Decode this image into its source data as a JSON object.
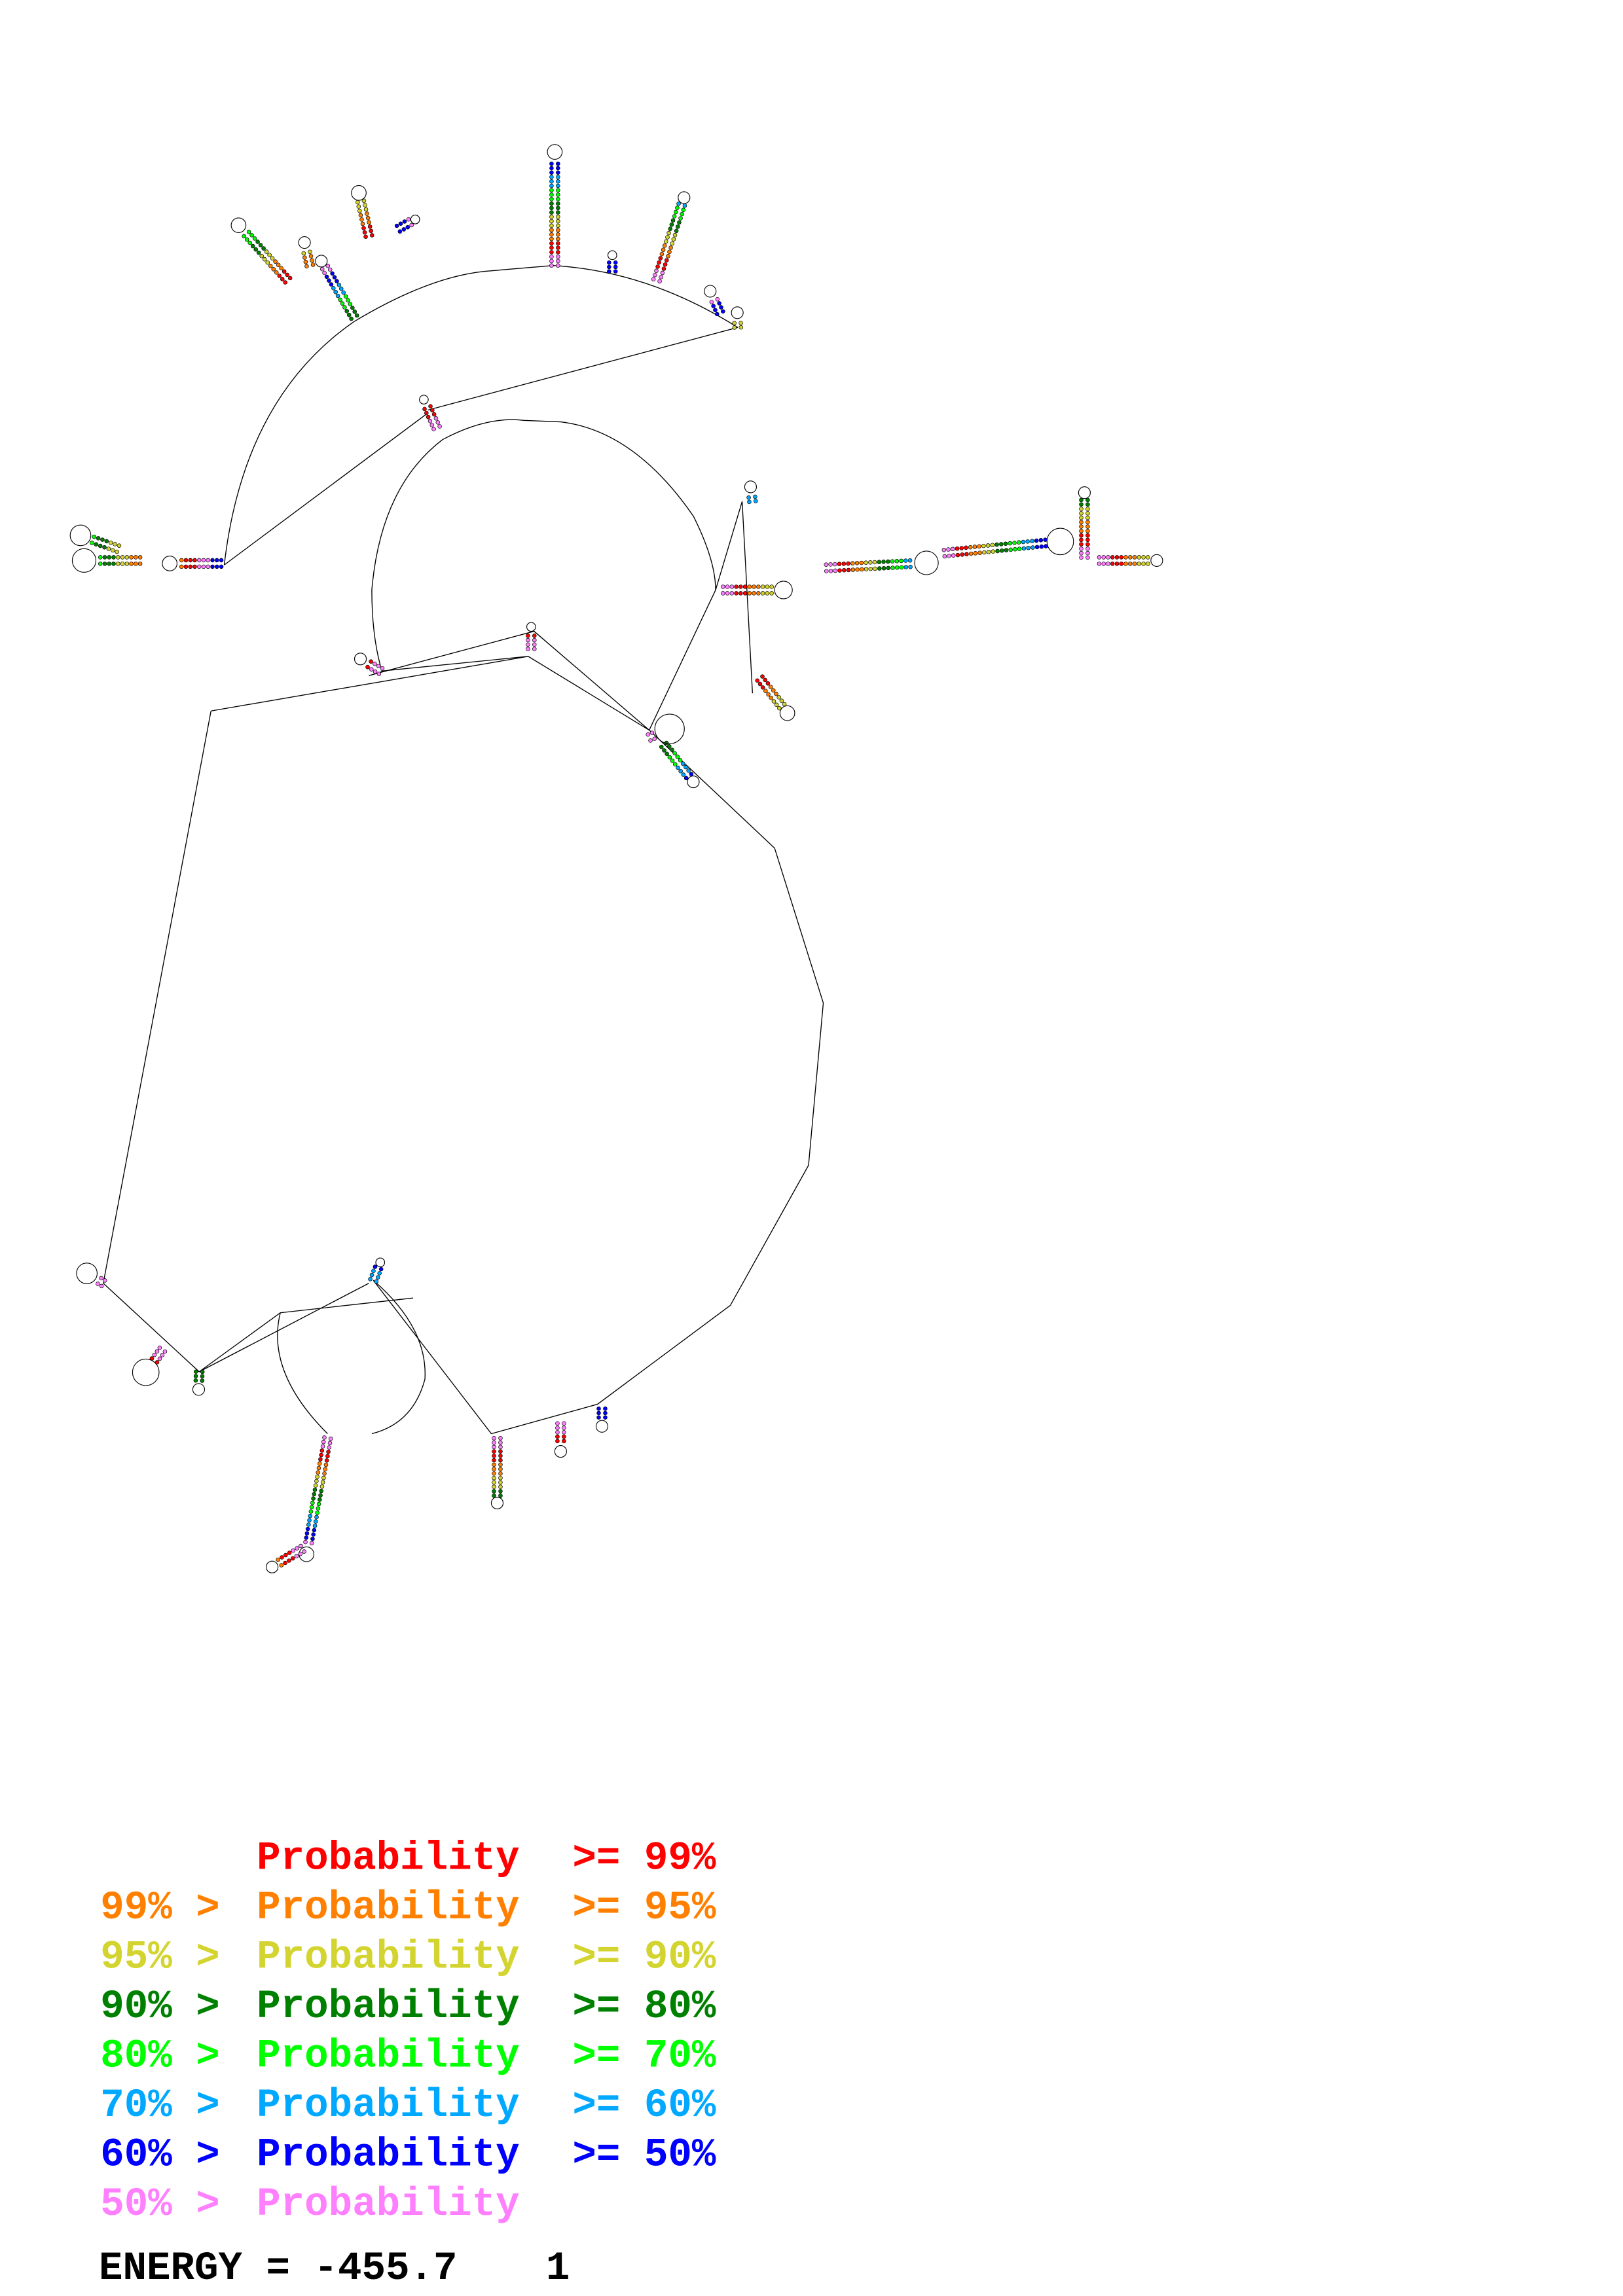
{
  "legend": [
    {
      "prefix": "",
      "label": "Probability",
      "suffix": ">= 99%",
      "color": "#ff0000"
    },
    {
      "prefix": "99% >",
      "label": "Probability",
      "suffix": ">= 95%",
      "color": "#ff8000"
    },
    {
      "prefix": "95% >",
      "label": "Probability",
      "suffix": ">= 90%",
      "color": "#d4d430"
    },
    {
      "prefix": "90% >",
      "label": "Probability",
      "suffix": ">= 80%",
      "color": "#008000"
    },
    {
      "prefix": "80% >",
      "label": "Probability",
      "suffix": ">= 70%",
      "color": "#00ff00"
    },
    {
      "prefix": "70% >",
      "label": "Probability",
      "suffix": ">= 60%",
      "color": "#00a8ff"
    },
    {
      "prefix": "60% >",
      "label": "Probability",
      "suffix": ">= 50%",
      "color": "#0000ff"
    },
    {
      "prefix": "50% >",
      "label": "Probability",
      "suffix": "",
      "color": "#ff80ff"
    }
  ],
  "energy": {
    "label": "ENERGY = -455.7",
    "index": "1"
  }
}
